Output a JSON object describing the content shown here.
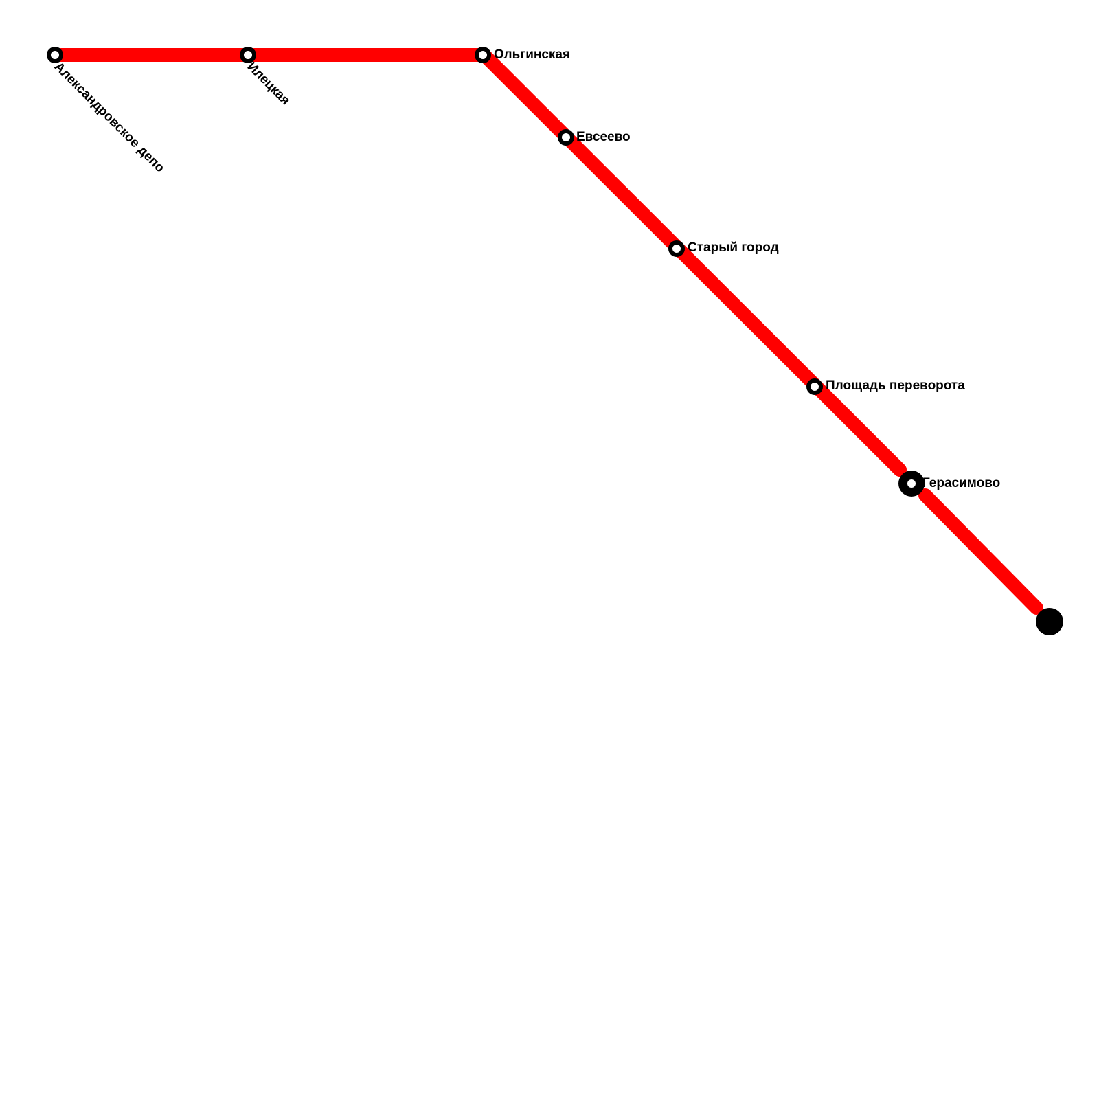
{
  "line": {
    "color": "#ff0000"
  },
  "colors": {
    "station_outline": "#000000",
    "station_fill": "#ffffff",
    "background": "#ffffff"
  },
  "stations": [
    {
      "id": "aleksandrovskoe-depo",
      "name": "Александровское депо"
    },
    {
      "id": "iletskaya",
      "name": "Илецкая"
    },
    {
      "id": "olginskaya",
      "name": "Ольгинская"
    },
    {
      "id": "evseevo",
      "name": "Евсеево"
    },
    {
      "id": "staryy-gorod",
      "name": "Старый город"
    },
    {
      "id": "ploshchad-perevorota",
      "name": "Площадь переворота"
    },
    {
      "id": "gerasimovo",
      "name": "Герасимово"
    }
  ]
}
